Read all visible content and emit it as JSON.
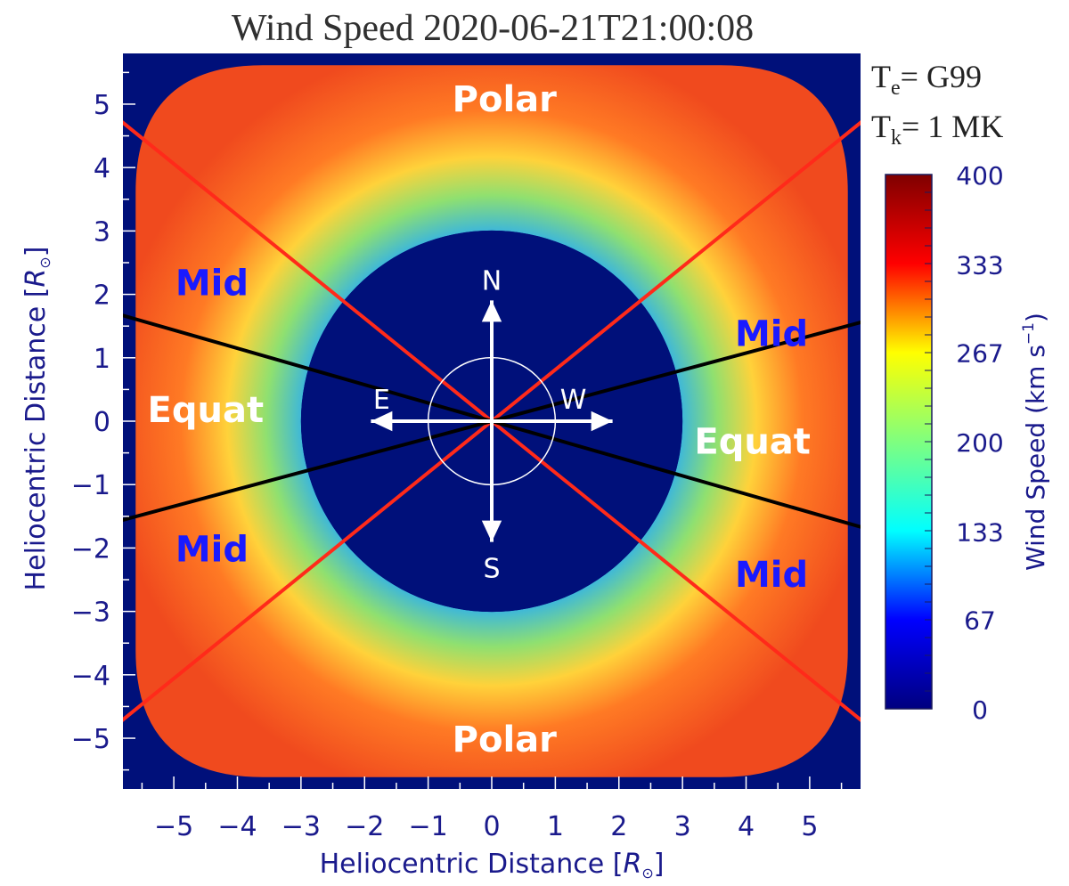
{
  "chart_data": {
    "type": "heatmap",
    "title": "Wind Speed 2020-06-21T21:00:08",
    "xlabel": "Heliocentric Distance [",
    "ylabel": "Heliocentric Distance [",
    "axis_unit_symbol": "R",
    "xlim": [
      -5.8,
      5.8
    ],
    "ylim": [
      -5.8,
      5.8
    ],
    "x_ticks": [
      "−5",
      "−4",
      "−3",
      "−2",
      "−1",
      "0",
      "1",
      "2",
      "3",
      "4",
      "5"
    ],
    "y_ticks": [
      "5",
      "4",
      "3",
      "2",
      "1",
      "0",
      "−1",
      "−2",
      "−3",
      "−4",
      "−5"
    ],
    "occulter_radius": 3.0,
    "outer_radius": 5.6,
    "background_color": "#00107a",
    "params": [
      {
        "symbol": "T",
        "sub": "e",
        "value": "= G99"
      },
      {
        "symbol": "T",
        "sub": "k",
        "value": "= 1 MK"
      }
    ],
    "colorbar": {
      "label": "Wind Speed  (km s",
      "label_exp": "−1",
      "label_close": ")",
      "range": [
        0,
        400
      ],
      "ticks": [
        "400",
        "333",
        "267",
        "200",
        "133",
        "67",
        "0"
      ],
      "colormap": [
        "#00007f",
        "#0000ff",
        "#00ffff",
        "#7fff7f",
        "#ffff00",
        "#ff0000",
        "#7f0000"
      ]
    },
    "regions": [
      {
        "label": "Polar",
        "x": 0.2,
        "y": 5.1,
        "color": "#ffffff"
      },
      {
        "label": "Polar",
        "x": 0.2,
        "y": -5.0,
        "color": "#ffffff"
      },
      {
        "label": "Mid",
        "x": -4.4,
        "y": 2.2,
        "color": "#1a1aff"
      },
      {
        "label": "Mid",
        "x": 4.4,
        "y": 1.4,
        "color": "#1a1aff"
      },
      {
        "label": "Mid",
        "x": -4.4,
        "y": -2.0,
        "color": "#1a1aff"
      },
      {
        "label": "Mid",
        "x": 4.4,
        "y": -2.4,
        "color": "#1a1aff"
      },
      {
        "label": "Equat",
        "x": -4.5,
        "y": 0.2,
        "color": "#ffffff"
      },
      {
        "label": "Equat",
        "x": 4.1,
        "y": -0.3,
        "color": "#ffffff"
      }
    ],
    "compass": {
      "north": "N",
      "south": "S",
      "east": "E",
      "west": "W",
      "circle_radius": 1.0
    },
    "boundary_lines": [
      {
        "angle_deg": 141,
        "color": "#ff2a1a"
      },
      {
        "angle_deg": 39,
        "color": "#ff2a1a"
      },
      {
        "angle_deg": 164,
        "color": "#000000"
      },
      {
        "angle_deg": 15,
        "color": "#000000"
      }
    ]
  }
}
